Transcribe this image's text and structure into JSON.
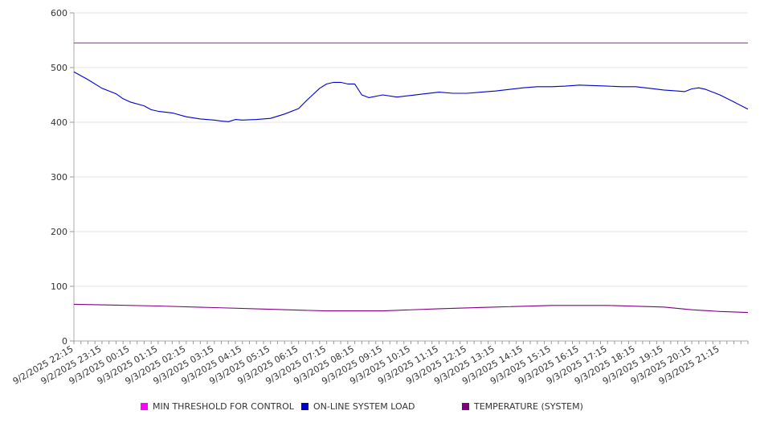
{
  "chart_data": {
    "type": "line",
    "title": "",
    "xlabel": "",
    "ylabel": "",
    "ylim": [
      0,
      600
    ],
    "yticks": [
      0,
      100,
      200,
      300,
      400,
      500,
      600
    ],
    "grid": true,
    "legend_position": "bottom",
    "x_tick_labels": [
      "9/2/2025 22:15",
      "9/2/2025 23:15",
      "9/3/2025 00:15",
      "9/3/2025 01:15",
      "9/3/2025 02:15",
      "9/3/2025 03:15",
      "9/3/2025 04:15",
      "9/3/2025 05:15",
      "9/3/2025 06:15",
      "9/3/2025 07:15",
      "9/3/2025 08:15",
      "9/3/2025 09:15",
      "9/3/2025 10:15",
      "9/3/2025 11:15",
      "9/3/2025 12:15",
      "9/3/2025 13:15",
      "9/3/2025 14:15",
      "9/3/2025 15:15",
      "9/3/2025 16:15",
      "9/3/2025 17:15",
      "9/3/2025 18:15",
      "9/3/2025 19:15",
      "9/3/2025 20:15",
      "9/3/2025 21:15"
    ],
    "x_range": [
      "9/2/2025 22:15",
      "9/3/2025 22:15"
    ],
    "series": [
      {
        "name": "MIN THRESHOLD FOR CONTROL",
        "color": "#ff00ff",
        "points": [
          [
            "9/2/2025 22:15",
            545
          ],
          [
            "9/3/2025 22:15",
            545
          ]
        ]
      },
      {
        "name": "ON-LINE SYSTEM LOAD",
        "color": "#0000cc",
        "points": [
          [
            "9/2/2025 22:15",
            492
          ],
          [
            "9/2/2025 22:45",
            478
          ],
          [
            "9/2/2025 23:15",
            462
          ],
          [
            "9/2/2025 23:45",
            452
          ],
          [
            "9/3/2025 00:00",
            443
          ],
          [
            "9/3/2025 00:15",
            437
          ],
          [
            "9/3/2025 00:45",
            430
          ],
          [
            "9/3/2025 01:00",
            423
          ],
          [
            "9/3/2025 01:15",
            420
          ],
          [
            "9/3/2025 01:45",
            417
          ],
          [
            "9/3/2025 02:15",
            410
          ],
          [
            "9/3/2025 02:45",
            406
          ],
          [
            "9/3/2025 03:15",
            404
          ],
          [
            "9/3/2025 03:30",
            402
          ],
          [
            "9/3/2025 03:45",
            401
          ],
          [
            "9/3/2025 04:00",
            405
          ],
          [
            "9/3/2025 04:15",
            404
          ],
          [
            "9/3/2025 04:45",
            405
          ],
          [
            "9/3/2025 05:15",
            407
          ],
          [
            "9/3/2025 05:45",
            415
          ],
          [
            "9/3/2025 06:15",
            425
          ],
          [
            "9/3/2025 06:30",
            438
          ],
          [
            "9/3/2025 06:45",
            450
          ],
          [
            "9/3/2025 07:00",
            462
          ],
          [
            "9/3/2025 07:15",
            470
          ],
          [
            "9/3/2025 07:30",
            473
          ],
          [
            "9/3/2025 07:45",
            473
          ],
          [
            "9/3/2025 08:00",
            470
          ],
          [
            "9/3/2025 08:15",
            470
          ],
          [
            "9/3/2025 08:30",
            450
          ],
          [
            "9/3/2025 08:45",
            445
          ],
          [
            "9/3/2025 09:15",
            450
          ],
          [
            "9/3/2025 09:45",
            446
          ],
          [
            "9/3/2025 10:15",
            449
          ],
          [
            "9/3/2025 10:45",
            452
          ],
          [
            "9/3/2025 11:15",
            455
          ],
          [
            "9/3/2025 11:45",
            453
          ],
          [
            "9/3/2025 12:15",
            453
          ],
          [
            "9/3/2025 12:45",
            455
          ],
          [
            "9/3/2025 13:15",
            457
          ],
          [
            "9/3/2025 13:45",
            460
          ],
          [
            "9/3/2025 14:15",
            463
          ],
          [
            "9/3/2025 14:45",
            465
          ],
          [
            "9/3/2025 15:15",
            465
          ],
          [
            "9/3/2025 15:45",
            466
          ],
          [
            "9/3/2025 16:15",
            468
          ],
          [
            "9/3/2025 16:45",
            467
          ],
          [
            "9/3/2025 17:15",
            466
          ],
          [
            "9/3/2025 17:45",
            465
          ],
          [
            "9/3/2025 18:15",
            465
          ],
          [
            "9/3/2025 18:45",
            462
          ],
          [
            "9/3/2025 19:15",
            459
          ],
          [
            "9/3/2025 19:45",
            457
          ],
          [
            "9/3/2025 20:00",
            456
          ],
          [
            "9/3/2025 20:15",
            461
          ],
          [
            "9/3/2025 20:30",
            463
          ],
          [
            "9/3/2025 20:45",
            460
          ],
          [
            "9/3/2025 21:00",
            455
          ],
          [
            "9/3/2025 21:15",
            450
          ],
          [
            "9/3/2025 21:45",
            437
          ],
          [
            "9/3/2025 22:15",
            424
          ]
        ]
      },
      {
        "name": "TEMPERATURE (SYSTEM)",
        "color": "#800080",
        "points": [
          [
            "9/2/2025 22:15",
            67
          ],
          [
            "9/2/2025 23:15",
            66
          ],
          [
            "9/3/2025 01:15",
            64
          ],
          [
            "9/3/2025 03:15",
            61
          ],
          [
            "9/3/2025 05:15",
            58
          ],
          [
            "9/3/2025 07:15",
            55
          ],
          [
            "9/3/2025 09:15",
            55
          ],
          [
            "9/3/2025 11:15",
            59
          ],
          [
            "9/3/2025 13:15",
            62
          ],
          [
            "9/3/2025 15:15",
            65
          ],
          [
            "9/3/2025 17:15",
            65
          ],
          [
            "9/3/2025 19:15",
            62
          ],
          [
            "9/3/2025 20:15",
            57
          ],
          [
            "9/3/2025 21:15",
            54
          ],
          [
            "9/3/2025 22:15",
            52
          ]
        ]
      }
    ]
  }
}
